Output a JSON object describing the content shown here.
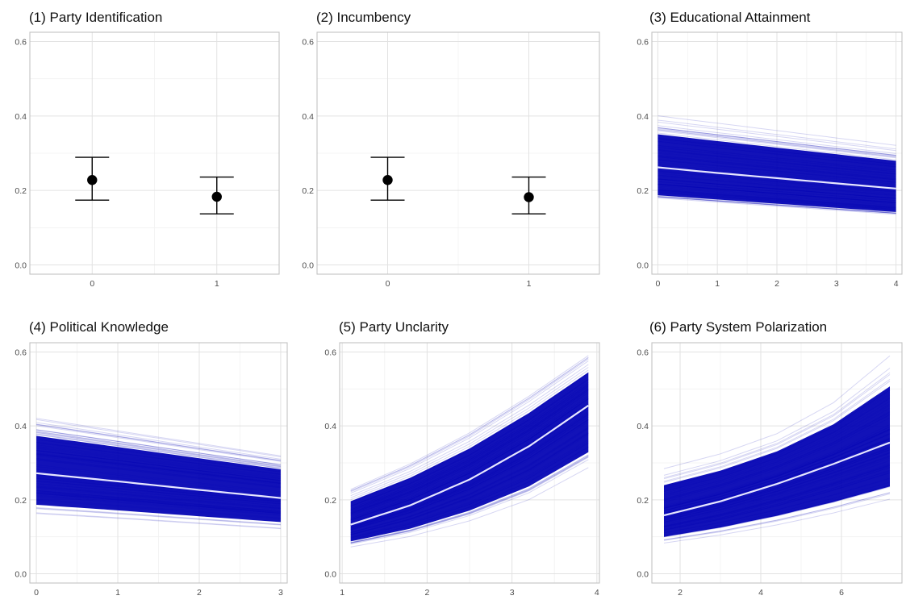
{
  "chart_data": [
    {
      "type": "errorbar",
      "title": "(1) Party Identification",
      "xlabel": "",
      "ylabel": "",
      "xlim": [
        -0.5,
        1.5
      ],
      "ylim": [
        -0.025,
        0.625
      ],
      "xticks": [
        0,
        1
      ],
      "xtick_labels": [
        "0",
        "1"
      ],
      "yticks": [
        0.0,
        0.2,
        0.4,
        0.6
      ],
      "ytick_labels": [
        "0.0",
        "0.2",
        "0.4",
        "0.6"
      ],
      "grid": true,
      "points": [
        {
          "x": 0,
          "y": 0.228,
          "lower": 0.174,
          "upper": 0.289
        },
        {
          "x": 1,
          "y": 0.183,
          "lower": 0.137,
          "upper": 0.236
        }
      ]
    },
    {
      "type": "errorbar",
      "title": "(2) Incumbency",
      "xlabel": "",
      "ylabel": "",
      "xlim": [
        -0.5,
        1.5
      ],
      "ylim": [
        -0.025,
        0.625
      ],
      "xticks": [
        0,
        1
      ],
      "xtick_labels": [
        "0",
        "1"
      ],
      "yticks": [
        0.0,
        0.2,
        0.4,
        0.6
      ],
      "ytick_labels": [
        "0.0",
        "0.2",
        "0.4",
        "0.6"
      ],
      "grid": true,
      "points": [
        {
          "x": 0,
          "y": 0.228,
          "lower": 0.174,
          "upper": 0.289
        },
        {
          "x": 1,
          "y": 0.182,
          "lower": 0.137,
          "upper": 0.236
        }
      ]
    },
    {
      "type": "line",
      "title": "(3) Educational Attainment",
      "xlabel": "",
      "ylabel": "",
      "xlim": [
        -0.1,
        4.1
      ],
      "ylim": [
        -0.025,
        0.625
      ],
      "xticks": [
        0,
        1,
        2,
        3,
        4
      ],
      "xtick_labels": [
        "0",
        "1",
        "2",
        "3",
        "4"
      ],
      "yticks": [
        0.0,
        0.2,
        0.4,
        0.6
      ],
      "ytick_labels": [
        "0.0",
        "0.2",
        "0.4",
        "0.6"
      ],
      "grid": true,
      "band_color": "#0000b3",
      "mean_color": "#e6e6ff",
      "mean": {
        "x": [
          0,
          1,
          2,
          3,
          4
        ],
        "y": [
          0.262,
          0.247,
          0.233,
          0.219,
          0.205
        ]
      },
      "band": {
        "x": [
          0,
          1,
          2,
          3,
          4
        ],
        "lower": [
          0.155,
          0.145,
          0.135,
          0.125,
          0.115
        ],
        "upper": [
          0.405,
          0.385,
          0.365,
          0.345,
          0.325
        ]
      }
    },
    {
      "type": "line",
      "title": "(4) Political Knowledge",
      "xlabel": "",
      "ylabel": "",
      "xlim": [
        -0.08,
        3.08
      ],
      "ylim": [
        -0.025,
        0.625
      ],
      "xticks": [
        0,
        1,
        2,
        3
      ],
      "xtick_labels": [
        "0",
        "1",
        "2",
        "3"
      ],
      "yticks": [
        0.0,
        0.2,
        0.4,
        0.6
      ],
      "ytick_labels": [
        "0.0",
        "0.2",
        "0.4",
        "0.6"
      ],
      "grid": true,
      "band_color": "#0000b3",
      "mean_color": "#e6e6ff",
      "mean": {
        "x": [
          0,
          1,
          2,
          3
        ],
        "y": [
          0.272,
          0.25,
          0.227,
          0.205
        ]
      },
      "band": {
        "x": [
          0,
          1,
          2,
          3
        ],
        "lower": [
          0.15,
          0.138,
          0.125,
          0.112
        ],
        "upper": [
          0.435,
          0.4,
          0.365,
          0.33
        ]
      }
    },
    {
      "type": "line",
      "title": "(5) Party Unclarity",
      "xlabel": "",
      "ylabel": "",
      "xlim": [
        0.97,
        4.03
      ],
      "ylim": [
        -0.025,
        0.625
      ],
      "xticks": [
        1,
        2,
        3,
        4
      ],
      "xtick_labels": [
        "1",
        "2",
        "3",
        "4"
      ],
      "yticks": [
        0.0,
        0.2,
        0.4,
        0.6
      ],
      "ytick_labels": [
        "0.0",
        "0.2",
        "0.4",
        "0.6"
      ],
      "grid": true,
      "band_color": "#0000b3",
      "mean_color": "#e6e6ff",
      "mean": {
        "x": [
          1.1,
          1.8,
          2.5,
          3.2,
          3.9
        ],
        "y": [
          0.133,
          0.185,
          0.255,
          0.345,
          0.455
        ]
      },
      "band": {
        "x": [
          1.1,
          1.8,
          2.5,
          3.2,
          3.9
        ],
        "lower": [
          0.068,
          0.095,
          0.135,
          0.19,
          0.275
        ],
        "upper": [
          0.235,
          0.305,
          0.39,
          0.49,
          0.6
        ]
      }
    },
    {
      "type": "line",
      "title": "(6) Party System Polarization",
      "xlabel": "",
      "ylabel": "",
      "xlim": [
        1.3,
        7.5
      ],
      "ylim": [
        -0.025,
        0.625
      ],
      "xticks": [
        2,
        4,
        6
      ],
      "xtick_labels": [
        "2",
        "4",
        "6"
      ],
      "yticks": [
        0.0,
        0.2,
        0.4,
        0.6
      ],
      "ytick_labels": [
        "0.0",
        "0.2",
        "0.4",
        "0.6"
      ],
      "grid": true,
      "band_color": "#0000b3",
      "mean_color": "#e6e6ff",
      "mean": {
        "x": [
          1.6,
          3.0,
          4.4,
          5.8,
          7.2
        ],
        "y": [
          0.158,
          0.196,
          0.243,
          0.297,
          0.355
        ]
      },
      "band": {
        "x": [
          1.6,
          3.0,
          4.4,
          5.8,
          7.2
        ],
        "lower": [
          0.075,
          0.095,
          0.12,
          0.15,
          0.185
        ],
        "upper": [
          0.29,
          0.33,
          0.385,
          0.47,
          0.6
        ]
      }
    }
  ]
}
